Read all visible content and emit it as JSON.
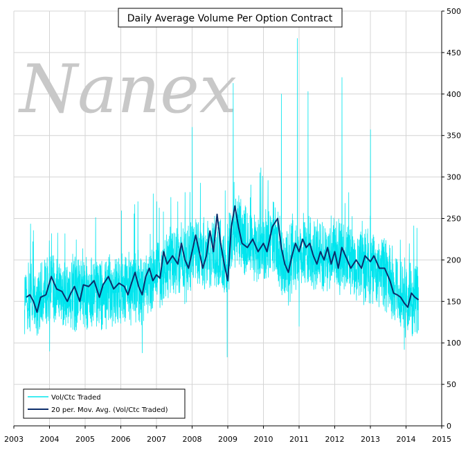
{
  "chart_data": {
    "type": "line",
    "title": "Daily Average Volume Per Option Contract",
    "watermark": "Nanex",
    "xlabel": "",
    "ylabel": "",
    "xlim": [
      2003,
      2015
    ],
    "ylim": [
      0,
      500
    ],
    "x_ticks": [
      "2003",
      "2004",
      "2005",
      "2006",
      "2007",
      "2008",
      "2009",
      "2010",
      "2011",
      "2012",
      "2013",
      "2014",
      "2015"
    ],
    "y_ticks": [
      "0",
      "50",
      "100",
      "150",
      "200",
      "250",
      "300",
      "350",
      "400",
      "450",
      "500"
    ],
    "grid": true,
    "legend_position": "bottom-left",
    "series": [
      {
        "name": "Vol/Ctc Traded",
        "color": "#00e5ee",
        "style": "daily",
        "x_start": 2003.3,
        "x_end": 2014.35,
        "mean": [
          [
            2003.3,
            158
          ],
          [
            2003.6,
            150
          ],
          [
            2003.9,
            160
          ],
          [
            2004.2,
            162
          ],
          [
            2004.5,
            158
          ],
          [
            2004.8,
            158
          ],
          [
            2005.1,
            160
          ],
          [
            2005.5,
            162
          ],
          [
            2005.9,
            165
          ],
          [
            2006.2,
            168
          ],
          [
            2006.6,
            168
          ],
          [
            2006.9,
            175
          ],
          [
            2007.2,
            188
          ],
          [
            2007.5,
            198
          ],
          [
            2007.8,
            195
          ],
          [
            2008.0,
            205
          ],
          [
            2008.3,
            210
          ],
          [
            2008.6,
            212
          ],
          [
            2008.8,
            205
          ],
          [
            2008.95,
            190
          ],
          [
            2009.1,
            225
          ],
          [
            2009.3,
            240
          ],
          [
            2009.5,
            220
          ],
          [
            2009.8,
            210
          ],
          [
            2010.0,
            215
          ],
          [
            2010.3,
            225
          ],
          [
            2010.5,
            200
          ],
          [
            2010.7,
            190
          ],
          [
            2010.9,
            210
          ],
          [
            2011.2,
            212
          ],
          [
            2011.5,
            205
          ],
          [
            2011.8,
            205
          ],
          [
            2012.0,
            208
          ],
          [
            2012.3,
            200
          ],
          [
            2012.6,
            195
          ],
          [
            2012.9,
            192
          ],
          [
            2013.2,
            185
          ],
          [
            2013.5,
            180
          ],
          [
            2013.7,
            162
          ],
          [
            2013.9,
            160
          ],
          [
            2014.1,
            150
          ],
          [
            2014.35,
            160
          ]
        ],
        "spikes": [
          [
            2008.0,
            360
          ],
          [
            2009.15,
            413
          ],
          [
            2010.5,
            400
          ],
          [
            2010.95,
            467
          ],
          [
            2011.25,
            403
          ],
          [
            2012.2,
            420
          ],
          [
            2013.0,
            357
          ],
          [
            2008.98,
            83
          ],
          [
            2013.95,
            92
          ],
          [
            2014.3,
            113
          ],
          [
            2006.6,
            88
          ],
          [
            2004.0,
            90
          ],
          [
            2011.0,
            120
          ]
        ]
      },
      {
        "name": "20 per. Mov. Avg. (Vol/Ctc Traded)",
        "color": "#0b2d6b",
        "style": "smooth",
        "points": [
          [
            2003.35,
            155
          ],
          [
            2003.45,
            158
          ],
          [
            2003.55,
            150
          ],
          [
            2003.65,
            137
          ],
          [
            2003.75,
            155
          ],
          [
            2003.9,
            158
          ],
          [
            2004.05,
            180
          ],
          [
            2004.2,
            165
          ],
          [
            2004.35,
            162
          ],
          [
            2004.5,
            150
          ],
          [
            2004.6,
            160
          ],
          [
            2004.7,
            168
          ],
          [
            2004.85,
            150
          ],
          [
            2004.95,
            170
          ],
          [
            2005.1,
            168
          ],
          [
            2005.25,
            175
          ],
          [
            2005.4,
            155
          ],
          [
            2005.5,
            170
          ],
          [
            2005.65,
            180
          ],
          [
            2005.8,
            165
          ],
          [
            2005.95,
            172
          ],
          [
            2006.1,
            168
          ],
          [
            2006.2,
            158
          ],
          [
            2006.3,
            172
          ],
          [
            2006.4,
            185
          ],
          [
            2006.5,
            168
          ],
          [
            2006.6,
            158
          ],
          [
            2006.7,
            180
          ],
          [
            2006.8,
            190
          ],
          [
            2006.9,
            175
          ],
          [
            2007.0,
            182
          ],
          [
            2007.1,
            178
          ],
          [
            2007.2,
            210
          ],
          [
            2007.3,
            195
          ],
          [
            2007.45,
            205
          ],
          [
            2007.6,
            195
          ],
          [
            2007.7,
            220
          ],
          [
            2007.8,
            200
          ],
          [
            2007.9,
            190
          ],
          [
            2008.0,
            210
          ],
          [
            2008.1,
            230
          ],
          [
            2008.2,
            210
          ],
          [
            2008.3,
            190
          ],
          [
            2008.4,
            205
          ],
          [
            2008.5,
            235
          ],
          [
            2008.6,
            210
          ],
          [
            2008.7,
            255
          ],
          [
            2008.8,
            220
          ],
          [
            2008.9,
            195
          ],
          [
            2009.0,
            175
          ],
          [
            2009.1,
            240
          ],
          [
            2009.2,
            265
          ],
          [
            2009.3,
            240
          ],
          [
            2009.4,
            220
          ],
          [
            2009.55,
            215
          ],
          [
            2009.7,
            225
          ],
          [
            2009.85,
            210
          ],
          [
            2010.0,
            220
          ],
          [
            2010.1,
            210
          ],
          [
            2010.25,
            240
          ],
          [
            2010.4,
            250
          ],
          [
            2010.5,
            215
          ],
          [
            2010.6,
            195
          ],
          [
            2010.7,
            185
          ],
          [
            2010.8,
            205
          ],
          [
            2010.9,
            220
          ],
          [
            2011.0,
            210
          ],
          [
            2011.1,
            225
          ],
          [
            2011.2,
            215
          ],
          [
            2011.3,
            220
          ],
          [
            2011.4,
            205
          ],
          [
            2011.5,
            195
          ],
          [
            2011.6,
            210
          ],
          [
            2011.7,
            200
          ],
          [
            2011.8,
            215
          ],
          [
            2011.9,
            195
          ],
          [
            2012.0,
            210
          ],
          [
            2012.1,
            190
          ],
          [
            2012.2,
            215
          ],
          [
            2012.3,
            205
          ],
          [
            2012.45,
            190
          ],
          [
            2012.6,
            200
          ],
          [
            2012.75,
            190
          ],
          [
            2012.85,
            205
          ],
          [
            2013.0,
            198
          ],
          [
            2013.1,
            205
          ],
          [
            2013.25,
            190
          ],
          [
            2013.4,
            190
          ],
          [
            2013.55,
            175
          ],
          [
            2013.65,
            160
          ],
          [
            2013.75,
            158
          ],
          [
            2013.85,
            155
          ],
          [
            2013.95,
            148
          ],
          [
            2014.05,
            143
          ],
          [
            2014.15,
            160
          ],
          [
            2014.25,
            155
          ],
          [
            2014.35,
            152
          ]
        ]
      }
    ]
  }
}
